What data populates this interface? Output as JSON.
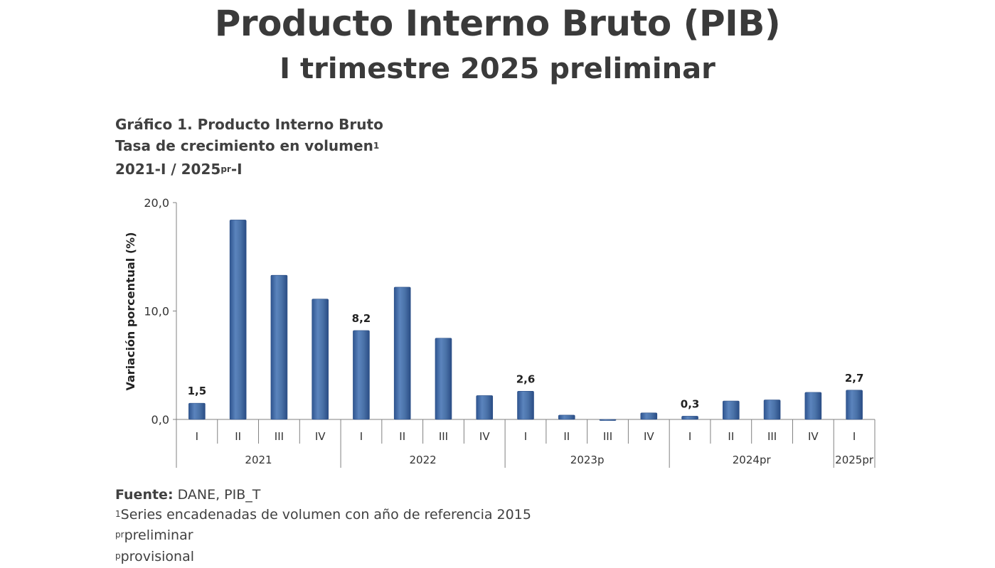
{
  "header": {
    "title": "Producto Interno Bruto (PIB)",
    "subtitle": "I trimestre 2025 preliminar"
  },
  "chart_heading": {
    "line1": "Gráfico 1. Producto Interno Bruto",
    "line2": "Tasa de crecimiento en volumen",
    "line2_sup": "1",
    "line3_a": "2021-I / 2025",
    "line3_sup": "pr",
    "line3_b": "-I"
  },
  "chart_data": {
    "type": "bar",
    "ylabel": "Variación porcentual (%)",
    "ylim": [
      0,
      20
    ],
    "yticks": [
      {
        "value": 0,
        "label": "0,0"
      },
      {
        "value": 10,
        "label": "10,0"
      },
      {
        "value": 20,
        "label": "20,0"
      }
    ],
    "categories": [
      "I",
      "II",
      "III",
      "IV",
      "I",
      "II",
      "III",
      "IV",
      "I",
      "II",
      "III",
      "IV",
      "I",
      "II",
      "III",
      "IV",
      "I"
    ],
    "values": [
      1.5,
      18.4,
      13.3,
      11.1,
      8.2,
      12.2,
      7.5,
      2.2,
      2.6,
      0.4,
      -0.1,
      0.6,
      0.3,
      1.7,
      1.8,
      2.5,
      2.7
    ],
    "data_labels": [
      {
        "index": 0,
        "text": "1,5"
      },
      {
        "index": 4,
        "text": "8,2"
      },
      {
        "index": 8,
        "text": "2,6"
      },
      {
        "index": 12,
        "text": "0,3"
      },
      {
        "index": 16,
        "text": "2,7"
      }
    ],
    "groups": [
      {
        "label": "2021",
        "start": 0,
        "count": 4
      },
      {
        "label": "2022",
        "start": 4,
        "count": 4
      },
      {
        "label": "2023p",
        "start": 8,
        "count": 4
      },
      {
        "label": "2024pr",
        "start": 12,
        "count": 4
      },
      {
        "label": "2025pr",
        "start": 16,
        "count": 1
      }
    ],
    "bar_color": "#4a72a8",
    "grid": false,
    "legend": "none"
  },
  "notes": {
    "source_label": "Fuente:",
    "source_text": " DANE, PIB_T",
    "note1_sup": "1",
    "note1": "Series encadenadas de volumen con año de referencia 2015",
    "note2_sup": "pr",
    "note2": "preliminar",
    "note3_sup": "p",
    "note3": "provisional"
  }
}
